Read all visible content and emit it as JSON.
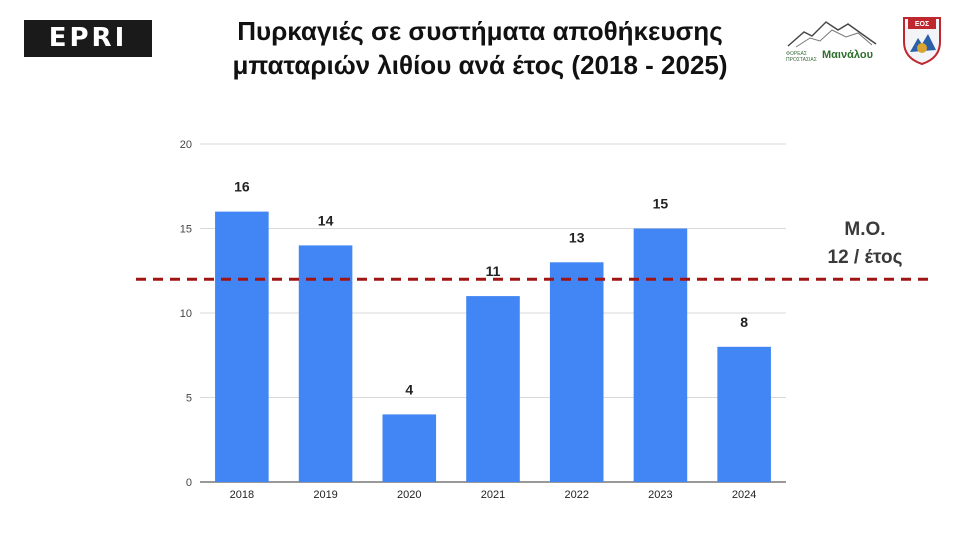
{
  "logos": {
    "epri": "EPRI",
    "mainalou_small": "ΦΟΡΕΑΣ ΠΡΟΣΤΑΣΙΑΣ",
    "mainalou_big": "Μαινάλου",
    "eos": "ΕΟΣ"
  },
  "average": {
    "line1": "Μ.Ο.",
    "line2": "12 / έτος",
    "value": 12,
    "color": "#a01414"
  },
  "chart_data": {
    "type": "bar",
    "title": "Πυρκαγιές σε συστήματα αποθήκευσης μπαταριών λιθίου ανά έτος (2018 - 2025)",
    "categories": [
      "2018",
      "2019",
      "2020",
      "2021",
      "2022",
      "2023",
      "2024"
    ],
    "values": [
      16,
      14,
      4,
      11,
      13,
      15,
      8
    ],
    "data_labels": [
      "16",
      "14",
      "4",
      "11",
      "13",
      "15",
      "8"
    ],
    "yticks": [
      "0",
      "5",
      "10",
      "15",
      "20"
    ],
    "ylim": [
      0,
      20
    ],
    "xlabel": "",
    "ylabel": "",
    "grid": true,
    "legend": "none",
    "bar_color": "#4285f4",
    "grid_color": "#d9d9d9"
  }
}
